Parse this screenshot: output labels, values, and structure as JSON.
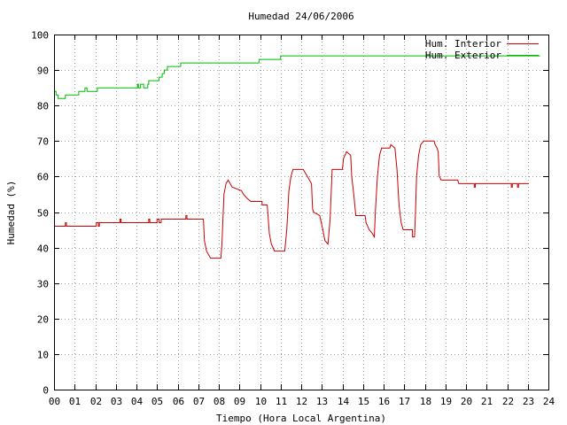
{
  "chart_data": {
    "type": "line",
    "title": "Humedad 24/06/2006",
    "xlabel": "Tiempo (Hora Local Argentina)",
    "ylabel": "Humedad (%)",
    "xlim": [
      0,
      24
    ],
    "ylim": [
      0,
      100
    ],
    "x_ticks": [
      "00",
      "01",
      "02",
      "03",
      "04",
      "05",
      "06",
      "07",
      "08",
      "09",
      "10",
      "11",
      "12",
      "13",
      "14",
      "15",
      "16",
      "17",
      "18",
      "19",
      "20",
      "21",
      "22",
      "23",
      "24"
    ],
    "y_ticks": [
      0,
      10,
      20,
      30,
      40,
      50,
      60,
      70,
      80,
      90,
      100
    ],
    "grid": true,
    "legend_position": "top-right",
    "series": [
      {
        "name": "Hum. Interior",
        "color": "#cc0000",
        "points": [
          [
            0,
            46
          ],
          [
            0.55,
            46
          ],
          [
            0.55,
            47
          ],
          [
            0.6,
            47
          ],
          [
            0.6,
            46
          ],
          [
            2.05,
            46
          ],
          [
            2.05,
            47
          ],
          [
            2.15,
            47
          ],
          [
            2.15,
            46
          ],
          [
            2.2,
            46
          ],
          [
            2.2,
            47
          ],
          [
            3.2,
            47
          ],
          [
            3.2,
            48
          ],
          [
            3.25,
            48
          ],
          [
            3.25,
            47
          ],
          [
            4.6,
            47
          ],
          [
            4.6,
            48
          ],
          [
            4.65,
            48
          ],
          [
            4.65,
            47
          ],
          [
            5.0,
            47
          ],
          [
            5.0,
            48
          ],
          [
            5.1,
            48
          ],
          [
            5.1,
            47
          ],
          [
            5.2,
            47
          ],
          [
            5.2,
            48
          ],
          [
            6.4,
            48
          ],
          [
            6.4,
            49
          ],
          [
            6.45,
            49
          ],
          [
            6.45,
            48
          ],
          [
            7.25,
            48
          ],
          [
            7.3,
            42
          ],
          [
            7.4,
            39
          ],
          [
            7.5,
            38
          ],
          [
            7.6,
            37
          ],
          [
            8.1,
            37
          ],
          [
            8.15,
            41
          ],
          [
            8.25,
            55
          ],
          [
            8.35,
            58
          ],
          [
            8.45,
            59
          ],
          [
            8.55,
            58
          ],
          [
            8.65,
            57
          ],
          [
            9.1,
            56
          ],
          [
            9.2,
            55
          ],
          [
            9.35,
            54
          ],
          [
            9.55,
            53
          ],
          [
            10.1,
            53
          ],
          [
            10.1,
            52
          ],
          [
            10.35,
            52
          ],
          [
            10.45,
            44
          ],
          [
            10.55,
            41
          ],
          [
            10.7,
            39
          ],
          [
            11.2,
            39
          ],
          [
            11.3,
            45
          ],
          [
            11.4,
            56
          ],
          [
            11.5,
            60
          ],
          [
            11.6,
            62
          ],
          [
            12.1,
            62
          ],
          [
            12.2,
            61
          ],
          [
            12.3,
            60
          ],
          [
            12.5,
            58
          ],
          [
            12.55,
            51
          ],
          [
            12.6,
            50
          ],
          [
            12.9,
            49
          ],
          [
            13.05,
            45
          ],
          [
            13.15,
            42
          ],
          [
            13.3,
            41
          ],
          [
            13.4,
            48
          ],
          [
            13.5,
            62
          ],
          [
            14.0,
            62
          ],
          [
            14.05,
            65
          ],
          [
            14.2,
            67
          ],
          [
            14.4,
            66
          ],
          [
            14.45,
            60
          ],
          [
            14.55,
            55
          ],
          [
            14.65,
            49
          ],
          [
            15.1,
            49
          ],
          [
            15.15,
            47
          ],
          [
            15.3,
            45
          ],
          [
            15.45,
            44
          ],
          [
            15.55,
            43
          ],
          [
            15.6,
            50
          ],
          [
            15.7,
            60
          ],
          [
            15.8,
            66
          ],
          [
            15.9,
            68
          ],
          [
            16.3,
            68
          ],
          [
            16.35,
            69
          ],
          [
            16.55,
            68
          ],
          [
            16.65,
            62
          ],
          [
            16.75,
            52
          ],
          [
            16.85,
            47
          ],
          [
            16.95,
            45
          ],
          [
            17.4,
            45
          ],
          [
            17.4,
            43
          ],
          [
            17.5,
            43
          ],
          [
            17.55,
            50
          ],
          [
            17.6,
            60
          ],
          [
            17.7,
            66
          ],
          [
            17.8,
            69
          ],
          [
            17.95,
            70
          ],
          [
            18.45,
            70
          ],
          [
            18.5,
            69
          ],
          [
            18.6,
            68
          ],
          [
            18.65,
            67
          ],
          [
            18.7,
            60
          ],
          [
            18.8,
            59
          ],
          [
            19.6,
            59
          ],
          [
            19.65,
            58
          ],
          [
            20.4,
            58
          ],
          [
            20.4,
            57
          ],
          [
            20.45,
            57
          ],
          [
            20.45,
            58
          ],
          [
            22.2,
            58
          ],
          [
            22.2,
            57
          ],
          [
            22.25,
            57
          ],
          [
            22.25,
            58
          ],
          [
            22.5,
            58
          ],
          [
            22.5,
            57
          ],
          [
            22.55,
            57
          ],
          [
            22.55,
            58
          ],
          [
            23.05,
            58
          ]
        ]
      },
      {
        "name": "Hum. Exterior",
        "color": "#00bb00",
        "points": [
          [
            0,
            84
          ],
          [
            0.1,
            84
          ],
          [
            0.1,
            83
          ],
          [
            0.2,
            83
          ],
          [
            0.2,
            82
          ],
          [
            0.55,
            82
          ],
          [
            0.55,
            83
          ],
          [
            1.2,
            83
          ],
          [
            1.2,
            84
          ],
          [
            1.5,
            84
          ],
          [
            1.5,
            85
          ],
          [
            1.6,
            85
          ],
          [
            1.6,
            84
          ],
          [
            2.1,
            84
          ],
          [
            2.1,
            85
          ],
          [
            4.05,
            85
          ],
          [
            4.05,
            86
          ],
          [
            4.1,
            86
          ],
          [
            4.1,
            85
          ],
          [
            4.2,
            85
          ],
          [
            4.2,
            86
          ],
          [
            4.35,
            86
          ],
          [
            4.35,
            85
          ],
          [
            4.55,
            85
          ],
          [
            4.55,
            86
          ],
          [
            4.6,
            86
          ],
          [
            4.6,
            87
          ],
          [
            5.1,
            87
          ],
          [
            5.1,
            88
          ],
          [
            5.25,
            88
          ],
          [
            5.25,
            89
          ],
          [
            5.35,
            89
          ],
          [
            5.35,
            90
          ],
          [
            5.5,
            90
          ],
          [
            5.5,
            91
          ],
          [
            6.15,
            91
          ],
          [
            6.15,
            92
          ],
          [
            9.95,
            92
          ],
          [
            9.95,
            93
          ],
          [
            11.0,
            93
          ],
          [
            11.0,
            94
          ],
          [
            23.6,
            94
          ]
        ]
      }
    ]
  }
}
